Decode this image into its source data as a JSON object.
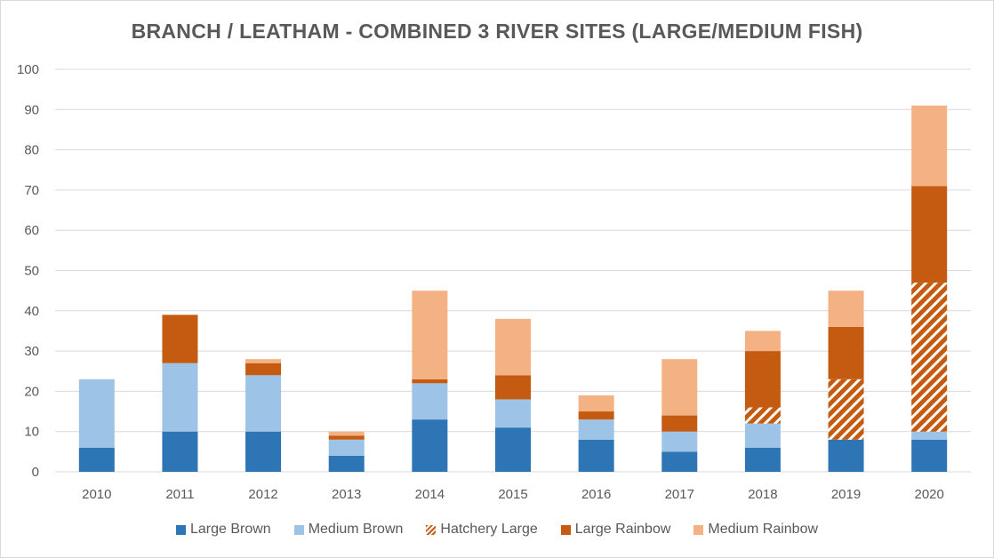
{
  "chart_data": {
    "type": "bar",
    "stacked": true,
    "title": "BRANCH / LEATHAM - COMBINED 3 RIVER SITES (LARGE/MEDIUM FISH)",
    "xlabel": "",
    "ylabel": "",
    "ylim": [
      0,
      100
    ],
    "yticks": [
      0,
      10,
      20,
      30,
      40,
      50,
      60,
      70,
      80,
      90,
      100
    ],
    "grid": true,
    "legend_position": "bottom",
    "categories": [
      "2010",
      "2011",
      "2012",
      "2013",
      "2014",
      "2015",
      "2016",
      "2017",
      "2018",
      "2019",
      "2020"
    ],
    "series": [
      {
        "name": "Large Brown",
        "color": "#2e75b6",
        "pattern": "solid",
        "values": [
          6,
          10,
          10,
          4,
          13,
          11,
          8,
          5,
          6,
          8,
          8
        ]
      },
      {
        "name": "Medium Brown",
        "color": "#9dc3e6",
        "pattern": "solid",
        "values": [
          17,
          17,
          14,
          4,
          9,
          7,
          5,
          5,
          6,
          0,
          2
        ]
      },
      {
        "name": "Hatchery Large",
        "color": "#c55a11",
        "pattern": "hatch",
        "values": [
          0,
          0,
          0,
          0,
          0,
          0,
          0,
          0,
          4,
          15,
          37
        ]
      },
      {
        "name": "Large Rainbow",
        "color": "#c55a11",
        "pattern": "solid",
        "values": [
          0,
          12,
          3,
          1,
          1,
          6,
          2,
          4,
          14,
          13,
          24
        ]
      },
      {
        "name": "Medium Rainbow",
        "color": "#f4b183",
        "pattern": "solid",
        "values": [
          0,
          0,
          1,
          1,
          22,
          14,
          4,
          14,
          5,
          9,
          20
        ]
      }
    ]
  }
}
